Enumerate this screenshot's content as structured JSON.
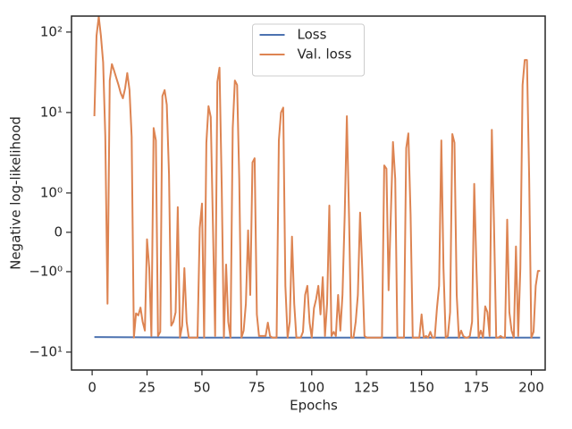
{
  "chart_data": {
    "type": "line",
    "xlabel": "Epochs",
    "ylabel": "Negative log-likelihood",
    "yscale": "symlog",
    "linthresh": 1,
    "linscale": 0.44,
    "xlim": [
      -9.4,
      206.3
    ],
    "ylim": [
      -16.7,
      158
    ],
    "xticks": [
      0,
      25,
      50,
      75,
      100,
      125,
      150,
      175,
      200
    ],
    "yticks": [
      {
        "value": -10,
        "label": "−10¹"
      },
      {
        "value": -1,
        "label": "−10⁰"
      },
      0,
      {
        "value": 1,
        "label": "10⁰"
      },
      {
        "value": 10,
        "label": "10¹"
      },
      {
        "value": 100,
        "label": "10²"
      }
    ],
    "grid": false,
    "legend": "upper center",
    "series": [
      {
        "name": "Loss",
        "color": "#4c72b0",
        "x": [
          1,
          50,
          100,
          150,
          204
        ],
        "values": [
          -6.5,
          -6.6,
          -6.6,
          -6.6,
          -6.6
        ]
      },
      {
        "name": "Val. loss",
        "color": "#dd8452",
        "x": [
          1,
          2,
          3,
          4,
          5,
          6,
          7,
          8,
          9,
          10,
          11,
          12,
          13,
          14,
          15,
          16,
          17,
          18,
          19,
          20,
          21,
          22,
          23,
          24,
          25,
          26,
          27,
          28,
          29,
          30,
          31,
          32,
          33,
          34,
          35,
          36,
          37,
          38,
          39,
          40,
          41,
          42,
          43,
          44,
          45,
          46,
          47,
          48,
          49,
          50,
          51,
          52,
          53,
          54,
          55,
          56,
          57,
          58,
          59,
          60,
          61,
          62,
          63,
          64,
          65,
          66,
          67,
          68,
          69,
          70,
          71,
          72,
          73,
          74,
          75,
          76,
          77,
          78,
          79,
          80,
          81,
          82,
          83,
          84,
          85,
          86,
          87,
          88,
          89,
          90,
          91,
          92,
          93,
          94,
          95,
          96,
          97,
          98,
          99,
          100,
          101,
          102,
          103,
          104,
          105,
          106,
          107,
          108,
          109,
          110,
          111,
          112,
          113,
          114,
          115,
          116,
          117,
          118,
          119,
          120,
          121,
          122,
          123,
          124,
          125,
          126,
          127,
          128,
          129,
          130,
          131,
          132,
          133,
          134,
          135,
          136,
          137,
          138,
          139,
          140,
          141,
          142,
          143,
          144,
          145,
          146,
          147,
          148,
          149,
          150,
          151,
          152,
          153,
          154,
          155,
          156,
          157,
          158,
          159,
          160,
          161,
          162,
          163,
          164,
          165,
          166,
          167,
          168,
          169,
          170,
          171,
          172,
          173,
          174,
          175,
          176,
          177,
          178,
          179,
          180,
          181,
          182,
          183,
          184,
          185,
          186,
          187,
          188,
          189,
          190,
          191,
          192,
          193,
          194,
          195,
          196,
          197,
          198,
          199,
          200,
          201,
          202,
          203,
          204
        ],
        "values": [
          9,
          90,
          155,
          90,
          42,
          5.1,
          -2.5,
          25,
          40,
          33,
          27,
          22,
          17.5,
          15,
          20,
          31,
          19,
          5,
          -6.6,
          -3.3,
          -3.5,
          -2.8,
          -4.2,
          -5.4,
          -0.18,
          -0.91,
          -6.3,
          6.4,
          4.5,
          -6.3,
          -5.6,
          16,
          19,
          12.5,
          1.7,
          -4.7,
          -4.2,
          -3.2,
          0.64,
          -6.6,
          -4.7,
          -0.91,
          -4.2,
          -6.6,
          -6.6,
          -6.6,
          -6.6,
          -6.6,
          0.11,
          0.73,
          -6.6,
          4.2,
          12,
          8.8,
          0.23,
          -6.3,
          24,
          36,
          1.17,
          -6.6,
          -0.82,
          -4.2,
          -6.6,
          6.4,
          25,
          22,
          1.5,
          -6.6,
          -5.4,
          -2.5,
          0.05,
          -1.95,
          2.4,
          2.7,
          -3.4,
          -6.3,
          -6.3,
          -6.3,
          -6.3,
          -4.3,
          -6.3,
          -6.6,
          -6.6,
          -6.6,
          4.5,
          10,
          11.5,
          -1.5,
          -6.6,
          -4.2,
          -0.11,
          -2.5,
          -6.6,
          -6.6,
          -6.6,
          -5.6,
          -1.95,
          -1.5,
          -4.3,
          -6.6,
          -2.85,
          -2.2,
          -1.5,
          -3.4,
          -1.17,
          -6.3,
          -2.5,
          0.68,
          -6.3,
          -5.6,
          -6.3,
          -1.95,
          -5.4,
          -1.95,
          0.45,
          9,
          0.34,
          -6.6,
          -6.6,
          -4.2,
          -1.95,
          0.5,
          -0.91,
          -6.3,
          -6.6,
          -6.6,
          -6.6,
          -6.6,
          -6.6,
          -6.6,
          -6.6,
          -6.6,
          2.2,
          2,
          -1.7,
          0.45,
          4.3,
          1.5,
          -6.6,
          -6.6,
          -6.6,
          -6.6,
          3.6,
          5.5,
          0.45,
          -6.6,
          -6.6,
          -6.6,
          -6.6,
          -3.4,
          -6.6,
          -6.3,
          -6.6,
          -5.6,
          -6.6,
          -6.6,
          -2.85,
          -1.5,
          4.5,
          -0.91,
          -6.6,
          -6.3,
          -3.2,
          5.4,
          4.2,
          -1.95,
          -6.6,
          -5.4,
          -6.3,
          -6.6,
          -6.6,
          -6.3,
          -4.2,
          1.3,
          -0.91,
          -6.6,
          -5.4,
          -6.6,
          -2.7,
          -3.2,
          -6.3,
          6.1,
          0.23,
          -6.6,
          -6.6,
          -6.3,
          -6.6,
          -6.6,
          0.32,
          -3.2,
          -5.4,
          -6.6,
          -0.36,
          -6.3,
          -0.91,
          22,
          45,
          45,
          1.5,
          -6.6,
          -5.6,
          -1.5,
          -0.98,
          -0.98
        ]
      }
    ]
  }
}
